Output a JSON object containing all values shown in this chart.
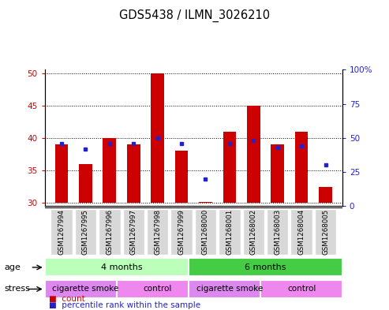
{
  "title": "GDS5438 / ILMN_3026210",
  "samples": [
    "GSM1267994",
    "GSM1267995",
    "GSM1267996",
    "GSM1267997",
    "GSM1267998",
    "GSM1267999",
    "GSM1268000",
    "GSM1268001",
    "GSM1268002",
    "GSM1268003",
    "GSM1268004",
    "GSM1268005"
  ],
  "counts": [
    39.0,
    36.0,
    40.0,
    39.0,
    50.0,
    38.0,
    30.2,
    41.0,
    45.0,
    39.0,
    41.0,
    32.5
  ],
  "percentiles": [
    46,
    42,
    46,
    46,
    50,
    46,
    20,
    46,
    48,
    43,
    44,
    30
  ],
  "baseline": 30,
  "ylim_left": [
    29.5,
    50.5
  ],
  "yticks_left": [
    30,
    35,
    40,
    45,
    50
  ],
  "ylim_right": [
    0,
    100
  ],
  "yticks_right": [
    0,
    25,
    50,
    75,
    100
  ],
  "bar_color": "#cc0000",
  "dot_color": "#2222cc",
  "bar_width": 0.55,
  "age_groups": [
    {
      "label": "4 months",
      "start": 0,
      "end": 6,
      "color": "#bbffbb"
    },
    {
      "label": "6 months",
      "start": 6,
      "end": 12,
      "color": "#44cc44"
    }
  ],
  "stress_groups": [
    {
      "label": "cigarette smoke",
      "start": 0,
      "end": 3,
      "color": "#dd88ee"
    },
    {
      "label": "control",
      "start": 3,
      "end": 6,
      "color": "#ee88ee"
    },
    {
      "label": "cigarette smoke",
      "start": 6,
      "end": 9,
      "color": "#dd88ee"
    },
    {
      "label": "control",
      "start": 9,
      "end": 12,
      "color": "#ee88ee"
    }
  ],
  "tick_fontsize": 7.5,
  "sample_fontsize": 6.2,
  "title_fontsize": 10.5
}
